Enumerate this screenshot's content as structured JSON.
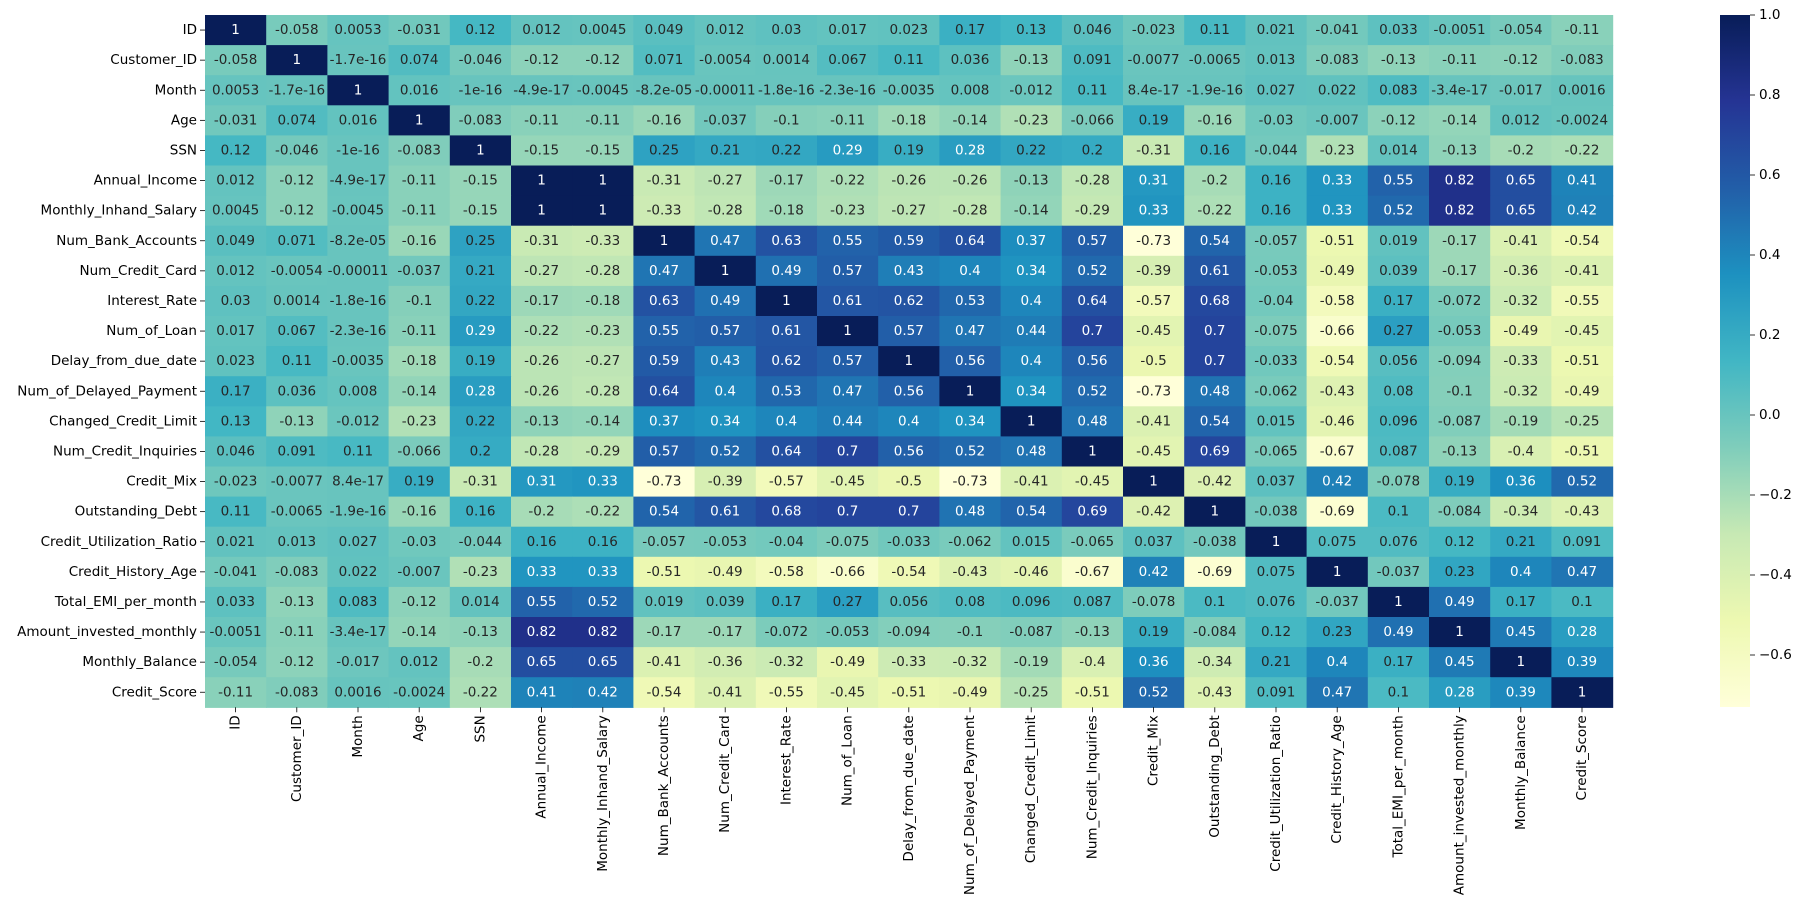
{
  "chart_data": {
    "type": "heatmap",
    "annotated": true,
    "colormap": "YlGnBu",
    "labels": [
      "ID",
      "Customer_ID",
      "Month",
      "Age",
      "SSN",
      "Annual_Income",
      "Monthly_Inhand_Salary",
      "Num_Bank_Accounts",
      "Num_Credit_Card",
      "Interest_Rate",
      "Num_of_Loan",
      "Delay_from_due_date",
      "Num_of_Delayed_Payment",
      "Changed_Credit_Limit",
      "Num_Credit_Inquiries",
      "Credit_Mix",
      "Outstanding_Debt",
      "Credit_Utilization_Ratio",
      "Credit_History_Age",
      "Total_EMI_per_month",
      "Amount_invested_monthly",
      "Monthly_Balance",
      "Credit_Score"
    ],
    "matrix": [
      [
        1,
        -0.058,
        0.0053,
        -0.031,
        0.12,
        0.012,
        0.0045,
        0.049,
        0.012,
        0.03,
        0.017,
        0.023,
        0.17,
        0.13,
        0.046,
        -0.023,
        0.11,
        0.021,
        -0.041,
        0.033,
        -0.0051,
        -0.054,
        -0.11
      ],
      [
        -0.058,
        1,
        -1.7e-16,
        0.074,
        -0.046,
        -0.12,
        -0.12,
        0.071,
        -0.0054,
        0.0014,
        0.067,
        0.11,
        0.036,
        -0.13,
        0.091,
        -0.0077,
        -0.0065,
        0.013,
        -0.083,
        -0.13,
        -0.11,
        -0.12,
        -0.083
      ],
      [
        0.0053,
        -1.7e-16,
        1,
        0.016,
        -1e-16,
        -4.9e-17,
        -0.0045,
        -8.2e-05,
        -0.00011,
        -1.8e-16,
        -2.3e-16,
        -0.0035,
        0.008,
        -0.012,
        0.11,
        8.4e-17,
        -1.9e-16,
        0.027,
        0.022,
        0.083,
        -3.4e-17,
        -0.017,
        0.0016
      ],
      [
        -0.031,
        0.074,
        0.016,
        1,
        -0.083,
        -0.11,
        -0.11,
        -0.16,
        -0.037,
        -0.1,
        -0.11,
        -0.18,
        -0.14,
        -0.23,
        -0.066,
        0.19,
        -0.16,
        -0.03,
        -0.007,
        -0.12,
        -0.14,
        0.012,
        -0.0024
      ],
      [
        0.12,
        -0.046,
        -1e-16,
        -0.083,
        1,
        -0.15,
        -0.15,
        0.25,
        0.21,
        0.22,
        0.29,
        0.19,
        0.28,
        0.22,
        0.2,
        -0.31,
        0.16,
        -0.044,
        -0.23,
        0.014,
        -0.13,
        -0.2,
        -0.22
      ],
      [
        0.012,
        -0.12,
        -4.9e-17,
        -0.11,
        -0.15,
        1,
        1,
        -0.31,
        -0.27,
        -0.17,
        -0.22,
        -0.26,
        -0.26,
        -0.13,
        -0.28,
        0.31,
        -0.2,
        0.16,
        0.33,
        0.55,
        0.82,
        0.65,
        0.41
      ],
      [
        0.0045,
        -0.12,
        -0.0045,
        -0.11,
        -0.15,
        1,
        1,
        -0.33,
        -0.28,
        -0.18,
        -0.23,
        -0.27,
        -0.28,
        -0.14,
        -0.29,
        0.33,
        -0.22,
        0.16,
        0.33,
        0.52,
        0.82,
        0.65,
        0.42
      ],
      [
        0.049,
        0.071,
        -8.2e-05,
        -0.16,
        0.25,
        -0.31,
        -0.33,
        1,
        0.47,
        0.63,
        0.55,
        0.59,
        0.64,
        0.37,
        0.57,
        -0.73,
        0.54,
        -0.057,
        -0.51,
        0.019,
        -0.17,
        -0.41,
        -0.54
      ],
      [
        0.012,
        -0.0054,
        -0.00011,
        -0.037,
        0.21,
        -0.27,
        -0.28,
        0.47,
        1,
        0.49,
        0.57,
        0.43,
        0.4,
        0.34,
        0.52,
        -0.39,
        0.61,
        -0.053,
        -0.49,
        0.039,
        -0.17,
        -0.36,
        -0.41
      ],
      [
        0.03,
        0.0014,
        -1.8e-16,
        -0.1,
        0.22,
        -0.17,
        -0.18,
        0.63,
        0.49,
        1,
        0.61,
        0.62,
        0.53,
        0.4,
        0.64,
        -0.57,
        0.68,
        -0.04,
        -0.58,
        0.17,
        -0.072,
        -0.32,
        -0.55
      ],
      [
        0.017,
        0.067,
        -2.3e-16,
        -0.11,
        0.29,
        -0.22,
        -0.23,
        0.55,
        0.57,
        0.61,
        1,
        0.57,
        0.47,
        0.44,
        0.7,
        -0.45,
        0.7,
        -0.075,
        -0.66,
        0.27,
        -0.053,
        -0.49,
        -0.45
      ],
      [
        0.023,
        0.11,
        -0.0035,
        -0.18,
        0.19,
        -0.26,
        -0.27,
        0.59,
        0.43,
        0.62,
        0.57,
        1,
        0.56,
        0.4,
        0.56,
        -0.5,
        0.7,
        -0.033,
        -0.54,
        0.056,
        -0.094,
        -0.33,
        -0.51
      ],
      [
        0.17,
        0.036,
        0.008,
        -0.14,
        0.28,
        -0.26,
        -0.28,
        0.64,
        0.4,
        0.53,
        0.47,
        0.56,
        1,
        0.34,
        0.52,
        -0.73,
        0.48,
        -0.062,
        -0.43,
        0.08,
        -0.1,
        -0.32,
        -0.49
      ],
      [
        0.13,
        -0.13,
        -0.012,
        -0.23,
        0.22,
        -0.13,
        -0.14,
        0.37,
        0.34,
        0.4,
        0.44,
        0.4,
        0.34,
        1,
        0.48,
        -0.41,
        0.54,
        0.015,
        -0.46,
        0.096,
        -0.087,
        -0.19,
        -0.25
      ],
      [
        0.046,
        0.091,
        0.11,
        -0.066,
        0.2,
        -0.28,
        -0.29,
        0.57,
        0.52,
        0.64,
        0.7,
        0.56,
        0.52,
        0.48,
        1,
        -0.45,
        0.69,
        -0.065,
        -0.67,
        0.087,
        -0.13,
        -0.4,
        -0.51
      ],
      [
        -0.023,
        -0.0077,
        8.4e-17,
        0.19,
        -0.31,
        0.31,
        0.33,
        -0.73,
        -0.39,
        -0.57,
        -0.45,
        -0.5,
        -0.73,
        -0.41,
        -0.45,
        1,
        -0.42,
        0.037,
        0.42,
        -0.078,
        0.19,
        0.36,
        0.52
      ],
      [
        0.11,
        -0.0065,
        -1.9e-16,
        -0.16,
        0.16,
        -0.2,
        -0.22,
        0.54,
        0.61,
        0.68,
        0.7,
        0.7,
        0.48,
        0.54,
        0.69,
        -0.42,
        1,
        -0.038,
        -0.69,
        0.1,
        -0.084,
        -0.34,
        -0.43
      ],
      [
        0.021,
        0.013,
        0.027,
        -0.03,
        -0.044,
        0.16,
        0.16,
        -0.057,
        -0.053,
        -0.04,
        -0.075,
        -0.033,
        -0.062,
        0.015,
        -0.065,
        0.037,
        -0.038,
        1,
        0.075,
        0.076,
        0.12,
        0.21,
        0.091
      ],
      [
        -0.041,
        -0.083,
        0.022,
        -0.007,
        -0.23,
        0.33,
        0.33,
        -0.51,
        -0.49,
        -0.58,
        -0.66,
        -0.54,
        -0.43,
        -0.46,
        -0.67,
        0.42,
        -0.69,
        0.075,
        1,
        -0.037,
        0.23,
        0.4,
        0.47
      ],
      [
        0.033,
        -0.13,
        0.083,
        -0.12,
        0.014,
        0.55,
        0.52,
        0.019,
        0.039,
        0.17,
        0.27,
        0.056,
        0.08,
        0.096,
        0.087,
        -0.078,
        0.1,
        0.076,
        -0.037,
        1,
        0.49,
        0.17,
        0.1
      ],
      [
        -0.0051,
        -0.11,
        -3.4e-17,
        -0.14,
        -0.13,
        0.82,
        0.82,
        -0.17,
        -0.17,
        -0.072,
        -0.053,
        -0.094,
        -0.1,
        -0.087,
        -0.13,
        0.19,
        -0.084,
        0.12,
        0.23,
        0.49,
        1,
        0.45,
        0.28
      ],
      [
        -0.054,
        -0.12,
        -0.017,
        0.012,
        -0.2,
        0.65,
        0.65,
        -0.41,
        -0.36,
        -0.32,
        -0.49,
        -0.33,
        -0.32,
        -0.19,
        -0.4,
        0.36,
        -0.34,
        0.21,
        0.4,
        0.17,
        0.45,
        1,
        0.39
      ],
      [
        -0.11,
        -0.083,
        0.0016,
        -0.0024,
        -0.22,
        0.41,
        0.42,
        -0.54,
        -0.41,
        -0.55,
        -0.45,
        -0.51,
        -0.49,
        -0.25,
        -0.51,
        0.52,
        -0.43,
        0.091,
        0.47,
        0.1,
        0.28,
        0.39,
        1
      ]
    ],
    "display_text": [
      [
        "1",
        "-0.058",
        "0.0053",
        "-0.031",
        "0.12",
        "0.012",
        "0.0045",
        "0.049",
        "0.012",
        "0.03",
        "0.017",
        "0.023",
        "0.17",
        "0.13",
        "0.046",
        "-0.023",
        "0.11",
        "0.021",
        "-0.041",
        "0.033",
        "-0.0051",
        "-0.054",
        "-0.11"
      ],
      [
        "-0.058",
        "1",
        "-1.7e-16",
        "0.074",
        "-0.046",
        "-0.12",
        "-0.12",
        "0.071",
        "-0.0054",
        "0.0014",
        "0.067",
        "0.11",
        "0.036",
        "-0.13",
        "0.091",
        "-0.0077",
        "-0.0065",
        "0.013",
        "-0.083",
        "-0.13",
        "-0.11",
        "-0.12",
        "-0.083"
      ],
      [
        "0.0053",
        "-1.7e-16",
        "1",
        "0.016",
        "-1e-16",
        "-4.9e-17",
        "-0.0045",
        "-8.2e-05",
        "-0.00011",
        "-1.8e-16",
        "-2.3e-16",
        "-0.0035",
        "0.008",
        "-0.012",
        "0.11",
        "8.4e-17",
        "-1.9e-16",
        "0.027",
        "0.022",
        "0.083",
        "-3.4e-17",
        "-0.017",
        "0.0016"
      ],
      [
        "-0.031",
        "0.074",
        "0.016",
        "1",
        "-0.083",
        "-0.11",
        "-0.11",
        "-0.16",
        "-0.037",
        "-0.1",
        "-0.11",
        "-0.18",
        "-0.14",
        "-0.23",
        "-0.066",
        "0.19",
        "-0.16",
        "-0.03",
        "-0.007",
        "-0.12",
        "-0.14",
        "0.012",
        "-0.0024"
      ],
      [
        "0.12",
        "-0.046",
        "-1e-16",
        "-0.083",
        "1",
        "-0.15",
        "-0.15",
        "0.25",
        "0.21",
        "0.22",
        "0.29",
        "0.19",
        "0.28",
        "0.22",
        "0.2",
        "-0.31",
        "0.16",
        "-0.044",
        "-0.23",
        "0.014",
        "-0.13",
        "-0.2",
        "-0.22"
      ],
      [
        "0.012",
        "-0.12",
        "-4.9e-17",
        "-0.11",
        "-0.15",
        "1",
        "1",
        "-0.31",
        "-0.27",
        "-0.17",
        "-0.22",
        "-0.26",
        "-0.26",
        "-0.13",
        "-0.28",
        "0.31",
        "-0.2",
        "0.16",
        "0.33",
        "0.55",
        "0.82",
        "0.65",
        "0.41"
      ],
      [
        "0.0045",
        "-0.12",
        "-0.0045",
        "-0.11",
        "-0.15",
        "1",
        "1",
        "-0.33",
        "-0.28",
        "-0.18",
        "-0.23",
        "-0.27",
        "-0.28",
        "-0.14",
        "-0.29",
        "0.33",
        "-0.22",
        "0.16",
        "0.33",
        "0.52",
        "0.82",
        "0.65",
        "0.42"
      ],
      [
        "0.049",
        "0.071",
        "-8.2e-05",
        "-0.16",
        "0.25",
        "-0.31",
        "-0.33",
        "1",
        "0.47",
        "0.63",
        "0.55",
        "0.59",
        "0.64",
        "0.37",
        "0.57",
        "-0.73",
        "0.54",
        "-0.057",
        "-0.51",
        "0.019",
        "-0.17",
        "-0.41",
        "-0.54"
      ],
      [
        "0.012",
        "-0.0054",
        "-0.00011",
        "-0.037",
        "0.21",
        "-0.27",
        "-0.28",
        "0.47",
        "1",
        "0.49",
        "0.57",
        "0.43",
        "0.4",
        "0.34",
        "0.52",
        "-0.39",
        "0.61",
        "-0.053",
        "-0.49",
        "0.039",
        "-0.17",
        "-0.36",
        "-0.41"
      ],
      [
        "0.03",
        "0.0014",
        "-1.8e-16",
        "-0.1",
        "0.22",
        "-0.17",
        "-0.18",
        "0.63",
        "0.49",
        "1",
        "0.61",
        "0.62",
        "0.53",
        "0.4",
        "0.64",
        "-0.57",
        "0.68",
        "-0.04",
        "-0.58",
        "0.17",
        "-0.072",
        "-0.32",
        "-0.55"
      ],
      [
        "0.017",
        "0.067",
        "-2.3e-16",
        "-0.11",
        "0.29",
        "-0.22",
        "-0.23",
        "0.55",
        "0.57",
        "0.61",
        "1",
        "0.57",
        "0.47",
        "0.44",
        "0.7",
        "-0.45",
        "0.7",
        "-0.075",
        "-0.66",
        "0.27",
        "-0.053",
        "-0.49",
        "-0.45"
      ],
      [
        "0.023",
        "0.11",
        "-0.0035",
        "-0.18",
        "0.19",
        "-0.26",
        "-0.27",
        "0.59",
        "0.43",
        "0.62",
        "0.57",
        "1",
        "0.56",
        "0.4",
        "0.56",
        "-0.5",
        "0.7",
        "-0.033",
        "-0.54",
        "0.056",
        "-0.094",
        "-0.33",
        "-0.51"
      ],
      [
        "0.17",
        "0.036",
        "0.008",
        "-0.14",
        "0.28",
        "-0.26",
        "-0.28",
        "0.64",
        "0.4",
        "0.53",
        "0.47",
        "0.56",
        "1",
        "0.34",
        "0.52",
        "-0.73",
        "0.48",
        "-0.062",
        "-0.43",
        "0.08",
        "-0.1",
        "-0.32",
        "-0.49"
      ],
      [
        "0.13",
        "-0.13",
        "-0.012",
        "-0.23",
        "0.22",
        "-0.13",
        "-0.14",
        "0.37",
        "0.34",
        "0.4",
        "0.44",
        "0.4",
        "0.34",
        "1",
        "0.48",
        "-0.41",
        "0.54",
        "0.015",
        "-0.46",
        "0.096",
        "-0.087",
        "-0.19",
        "-0.25"
      ],
      [
        "0.046",
        "0.091",
        "0.11",
        "-0.066",
        "0.2",
        "-0.28",
        "-0.29",
        "0.57",
        "0.52",
        "0.64",
        "0.7",
        "0.56",
        "0.52",
        "0.48",
        "1",
        "-0.45",
        "0.69",
        "-0.065",
        "-0.67",
        "0.087",
        "-0.13",
        "-0.4",
        "-0.51"
      ],
      [
        "-0.023",
        "-0.0077",
        "8.4e-17",
        "0.19",
        "-0.31",
        "0.31",
        "0.33",
        "-0.73",
        "-0.39",
        "-0.57",
        "-0.45",
        "-0.5",
        "-0.73",
        "-0.41",
        "-0.45",
        "1",
        "-0.42",
        "0.037",
        "0.42",
        "-0.078",
        "0.19",
        "0.36",
        "0.52"
      ],
      [
        "0.11",
        "-0.0065",
        "-1.9e-16",
        "-0.16",
        "0.16",
        "-0.2",
        "-0.22",
        "0.54",
        "0.61",
        "0.68",
        "0.7",
        "0.7",
        "0.48",
        "0.54",
        "0.69",
        "-0.42",
        "1",
        "-0.038",
        "-0.69",
        "0.1",
        "-0.084",
        "-0.34",
        "-0.43"
      ],
      [
        "0.021",
        "0.013",
        "0.027",
        "-0.03",
        "-0.044",
        "0.16",
        "0.16",
        "-0.057",
        "-0.053",
        "-0.04",
        "-0.075",
        "-0.033",
        "-0.062",
        "0.015",
        "-0.065",
        "0.037",
        "-0.038",
        "1",
        "0.075",
        "0.076",
        "0.12",
        "0.21",
        "0.091"
      ],
      [
        "-0.041",
        "-0.083",
        "0.022",
        "-0.007",
        "-0.23",
        "0.33",
        "0.33",
        "-0.51",
        "-0.49",
        "-0.58",
        "-0.66",
        "-0.54",
        "-0.43",
        "-0.46",
        "-0.67",
        "0.42",
        "-0.69",
        "0.075",
        "1",
        "-0.037",
        "0.23",
        "0.4",
        "0.47"
      ],
      [
        "0.033",
        "-0.13",
        "0.083",
        "-0.12",
        "0.014",
        "0.55",
        "0.52",
        "0.019",
        "0.039",
        "0.17",
        "0.27",
        "0.056",
        "0.08",
        "0.096",
        "0.087",
        "-0.078",
        "0.1",
        "0.076",
        "-0.037",
        "1",
        "0.49",
        "0.17",
        "0.1"
      ],
      [
        "-0.0051",
        "-0.11",
        "-3.4e-17",
        "-0.14",
        "-0.13",
        "0.82",
        "0.82",
        "-0.17",
        "-0.17",
        "-0.072",
        "-0.053",
        "-0.094",
        "-0.1",
        "-0.087",
        "-0.13",
        "0.19",
        "-0.084",
        "0.12",
        "0.23",
        "0.49",
        "1",
        "0.45",
        "0.28"
      ],
      [
        "-0.054",
        "-0.12",
        "-0.017",
        "0.012",
        "-0.2",
        "0.65",
        "0.65",
        "-0.41",
        "-0.36",
        "-0.32",
        "-0.49",
        "-0.33",
        "-0.32",
        "-0.19",
        "-0.4",
        "0.36",
        "-0.34",
        "0.21",
        "0.4",
        "0.17",
        "0.45",
        "1",
        "0.39"
      ],
      [
        "-0.11",
        "-0.083",
        "0.0016",
        "-0.0024",
        "-0.22",
        "0.41",
        "0.42",
        "-0.54",
        "-0.41",
        "-0.55",
        "-0.45",
        "-0.51",
        "-0.49",
        "-0.25",
        "-0.51",
        "0.52",
        "-0.43",
        "0.091",
        "0.47",
        "0.1",
        "0.28",
        "0.39",
        "1"
      ]
    ],
    "colorbar": {
      "vmin": -0.73,
      "vmax": 1,
      "ticks": [
        1.0,
        0.8,
        0.6,
        0.4,
        0.2,
        0.0,
        -0.2,
        -0.4,
        -0.6
      ],
      "tick_labels": [
        "1.0",
        "0.8",
        "0.6",
        "0.4",
        "0.2",
        "0.0",
        "−0.2",
        "−0.4",
        "−0.6"
      ]
    },
    "colormap_stops": [
      "#ffffd9",
      "#edf8b1",
      "#c7e9b4",
      "#7fcdbb",
      "#41b6c4",
      "#1d91c0",
      "#225ea8",
      "#253494",
      "#081d58"
    ],
    "title": "",
    "xlabel": "",
    "ylabel": ""
  }
}
